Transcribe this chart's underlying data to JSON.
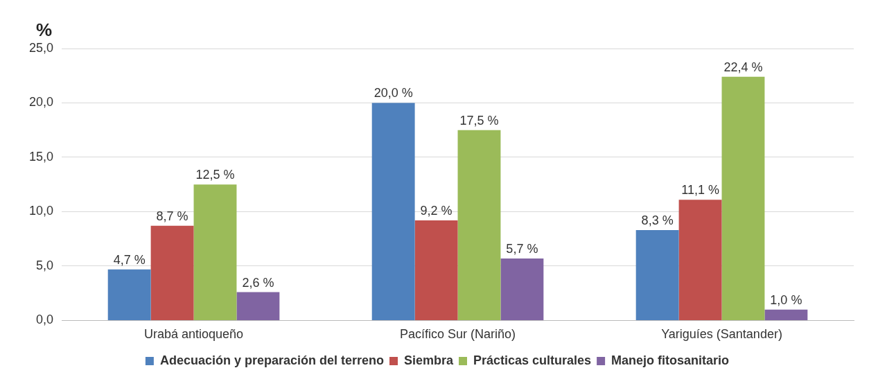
{
  "chart_data": {
    "type": "bar",
    "ylabel": "%",
    "categories": [
      "Urabá antioqueño",
      "Pacífico Sur (Nariño)",
      "Yariguíes (Santander)"
    ],
    "series": [
      {
        "name": "Adecuación y preparación del terreno",
        "color": "#4f81bd",
        "values": [
          4.7,
          20.0,
          8.3
        ],
        "value_labels": [
          "4,7 %",
          "20,0 %",
          "8,3 %"
        ]
      },
      {
        "name": "Siembra",
        "color": "#c0504d",
        "values": [
          8.7,
          9.2,
          11.1
        ],
        "value_labels": [
          "8,7 %",
          "9,2 %",
          "11,1 %"
        ]
      },
      {
        "name": "Prácticas culturales",
        "color": "#9bbb59",
        "values": [
          12.5,
          17.5,
          22.4
        ],
        "value_labels": [
          "12,5 %",
          "17,5 %",
          "22,4 %"
        ]
      },
      {
        "name": "Manejo fitosanitario",
        "color": "#8064a2",
        "values": [
          2.6,
          5.7,
          1.0
        ],
        "value_labels": [
          "2,6 %",
          "5,7 %",
          "1,0 %"
        ]
      }
    ],
    "ylim": [
      0,
      25
    ],
    "yticks": [
      {
        "value": 0,
        "label": "0,0"
      },
      {
        "value": 5,
        "label": "5,0"
      },
      {
        "value": 10,
        "label": "10,0"
      },
      {
        "value": 15,
        "label": "15,0"
      },
      {
        "value": 20,
        "label": "20,0"
      },
      {
        "value": 25,
        "label": "25,0"
      }
    ],
    "grid": "y",
    "legend": "bottom"
  }
}
